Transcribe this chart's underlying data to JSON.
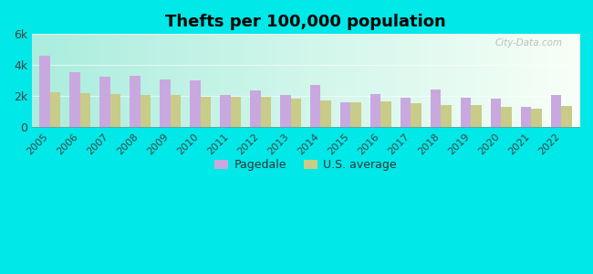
{
  "title": "Thefts per 100,000 population",
  "years": [
    2005,
    2006,
    2007,
    2008,
    2009,
    2010,
    2011,
    2012,
    2013,
    2014,
    2015,
    2016,
    2017,
    2018,
    2019,
    2020,
    2021,
    2022
  ],
  "pagedale": [
    4600,
    3550,
    3250,
    3300,
    3100,
    3000,
    2050,
    2350,
    2100,
    2750,
    1600,
    2150,
    1900,
    2400,
    1900,
    1850,
    1300,
    2100
  ],
  "us_average": [
    2250,
    2200,
    2150,
    2100,
    2050,
    1950,
    1950,
    1950,
    1850,
    1700,
    1600,
    1650,
    1550,
    1450,
    1400,
    1300,
    1200,
    1350
  ],
  "pagedale_color": "#c9a8e0",
  "us_avg_color": "#c8cc88",
  "outer_bg": "#00e8e8",
  "ylim": [
    0,
    6000
  ],
  "yticks": [
    0,
    2000,
    4000,
    6000
  ],
  "ytick_labels": [
    "0",
    "2k",
    "4k",
    "6k"
  ],
  "legend_pagedale": "Pagedale",
  "legend_us": "U.S. average",
  "watermark": "City-Data.com"
}
